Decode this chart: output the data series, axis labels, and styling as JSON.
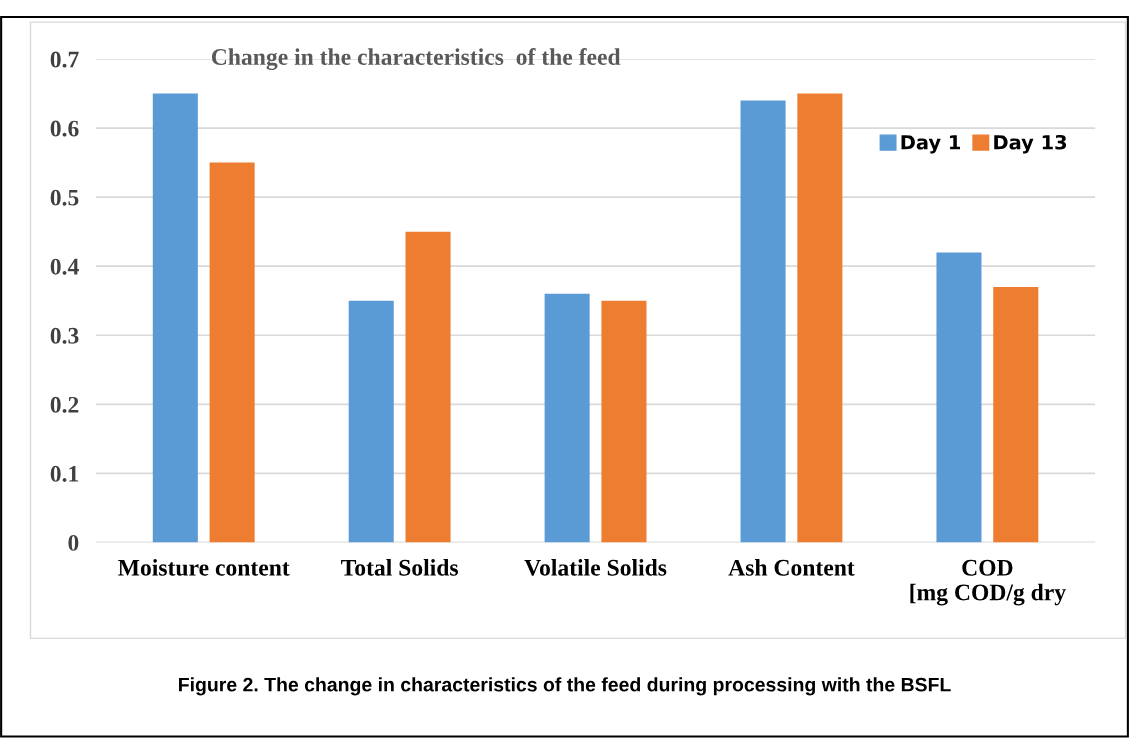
{
  "chart_data": {
    "type": "bar",
    "title": "Change in the characteristics  of the feed",
    "categories": [
      "Moisture content",
      "Total Solids",
      "Volatile Solids",
      "Ash Content",
      "COD\n[mg COD/g dry"
    ],
    "series": [
      {
        "name": "Day 1",
        "color": "#5b9bd5",
        "values": [
          0.65,
          0.35,
          0.36,
          0.64,
          0.42
        ]
      },
      {
        "name": "Day 13",
        "color": "#ed7d31",
        "values": [
          0.55,
          0.45,
          0.35,
          0.65,
          0.37
        ]
      }
    ],
    "ylim": [
      0,
      0.7
    ],
    "yticks": [
      {
        "value": 0,
        "label": "0"
      },
      0.1,
      0.2,
      0.3,
      0.4,
      0.5,
      0.6,
      0.7
    ],
    "grid": "y",
    "legend": "top right",
    "annotations": [
      "Figure 2. The change in characteristics of the feed during processing with the BSFL"
    ]
  }
}
